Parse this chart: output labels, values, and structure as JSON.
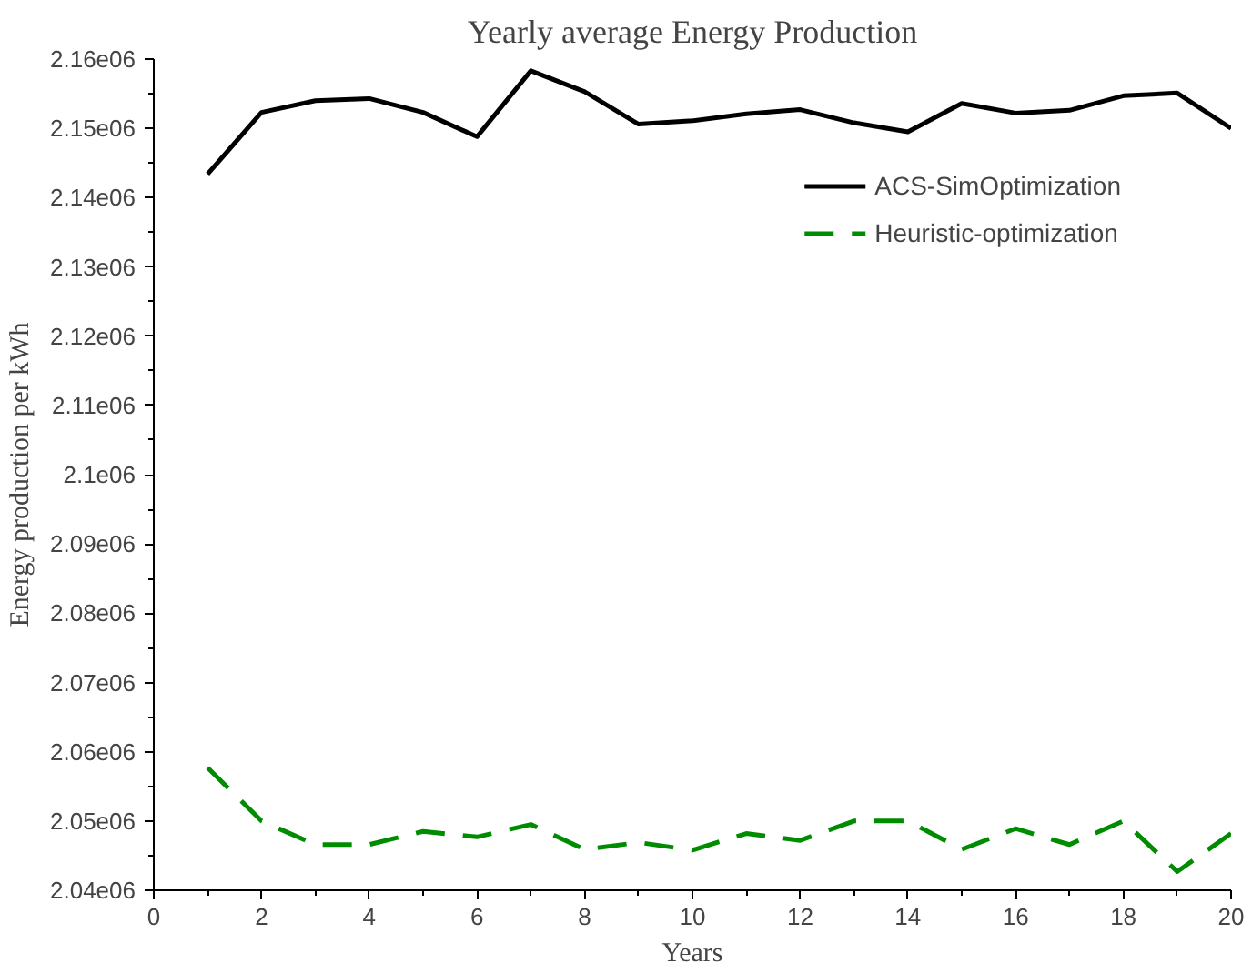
{
  "chart_data": {
    "type": "line",
    "title": "Yearly average Energy Production",
    "xlabel": "Years",
    "ylabel": "Energy production per kWh",
    "x": [
      1,
      2,
      3,
      4,
      5,
      6,
      7,
      8,
      9,
      10,
      11,
      12,
      13,
      14,
      15,
      16,
      17,
      18,
      19,
      20
    ],
    "series": [
      {
        "name": "ACS-SimOptimization",
        "color": "#000000",
        "line_style": "solid",
        "values": [
          2143400,
          2152300,
          2154000,
          2154300,
          2152300,
          2148800,
          2158300,
          2155300,
          2150600,
          2151100,
          2152100,
          2152700,
          2150800,
          2149500,
          2153600,
          2152200,
          2152600,
          2154700,
          2155100,
          2150000
        ]
      },
      {
        "name": "Heuristic-optimization",
        "color": "#008c00",
        "line_style": "dashed",
        "values": [
          2057700,
          2050000,
          2046600,
          2046600,
          2048500,
          2047700,
          2049500,
          2045900,
          2046900,
          2045800,
          2048200,
          2047200,
          2050000,
          2050000,
          2045900,
          2048900,
          2046600,
          2050000,
          2042700,
          2048200
        ]
      }
    ],
    "xlim": [
      0,
      20
    ],
    "xticks": [
      0,
      2,
      4,
      6,
      8,
      10,
      12,
      14,
      16,
      18,
      20
    ],
    "ylim": [
      2040000,
      2160000
    ],
    "yticks": [
      {
        "value": 2040000,
        "label": "2.04e06"
      },
      {
        "value": 2050000,
        "label": "2.05e06"
      },
      {
        "value": 2060000,
        "label": "2.06e06"
      },
      {
        "value": 2070000,
        "label": "2.07e06"
      },
      {
        "value": 2080000,
        "label": "2.08e06"
      },
      {
        "value": 2090000,
        "label": "2.09e06"
      },
      {
        "value": 2100000,
        "label": "2.1e06"
      },
      {
        "value": 2110000,
        "label": "2.11e06"
      },
      {
        "value": 2120000,
        "label": "2.12e06"
      },
      {
        "value": 2130000,
        "label": "2.13e06"
      },
      {
        "value": 2140000,
        "label": "2.14e06"
      },
      {
        "value": 2150000,
        "label": "2.15e06"
      },
      {
        "value": 2160000,
        "label": "2.16e06"
      }
    ],
    "grid": false,
    "legend": "top right"
  }
}
